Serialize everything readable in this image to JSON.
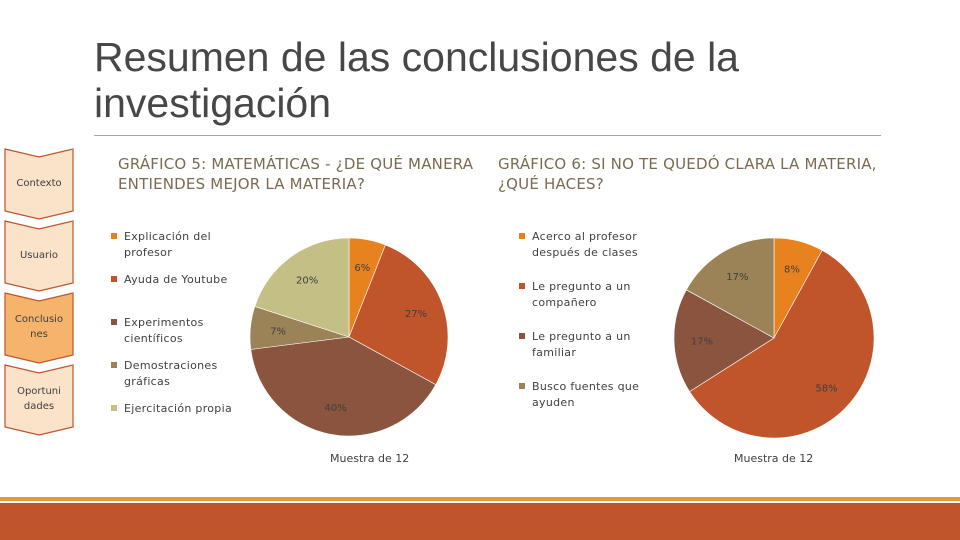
{
  "title": "Resumen de las conclusiones de la investigación",
  "nav": {
    "items": [
      {
        "label": "Contexto",
        "fill": "#fbe3c9"
      },
      {
        "label": "Usuario",
        "fill": "#fbe3c9"
      },
      {
        "label": "Conclusio nes",
        "fill": "#f6b36c"
      },
      {
        "label": "Oportuni dades",
        "fill": "#fbe3c9"
      }
    ],
    "border_color": "#c0542b"
  },
  "charts": {
    "left_heading": "GRÁFICO 5: MATEMÁTICAS - ¿DE QUÉ MANERA ENTIENDES MEJOR LA MATERIA?",
    "right_heading": "GRÁFICO 6: SI NO TE QUEDÓ CLARA LA MATERIA, ¿QUÉ HACES?",
    "left_sample": "Muestra de 12",
    "right_sample": "Muestra de 12"
  },
  "chart_data": [
    {
      "type": "pie",
      "title": "GRÁFICO 5: MATEMÁTICAS - ¿DE QUÉ MANERA ENTIENDES MEJOR LA MATERIA?",
      "categories": [
        "Explicación del profesor",
        "Ayuda de Youtube",
        "Experimentos científicos",
        "Demostraciones gráficas",
        "Ejercitación propia"
      ],
      "values": [
        6,
        27,
        40,
        7,
        20
      ],
      "labels": [
        "6%",
        "27%",
        "40%",
        "7%",
        "20%"
      ],
      "colors": [
        "#e8821e",
        "#c0542b",
        "#8a543f",
        "#9b8257",
        "#c3bf85"
      ],
      "legend": "left",
      "note": "Muestra de 12"
    },
    {
      "type": "pie",
      "title": "GRÁFICO 6: SI NO TE QUEDÓ CLARA LA MATERIA, ¿QUÉ HACES?",
      "categories": [
        "Acerco al profesor después de clases",
        "Le pregunto a un compañero",
        "Le pregunto a un familiar",
        "Busco fuentes que ayuden"
      ],
      "values": [
        8,
        58,
        17,
        17
      ],
      "labels": [
        "8%",
        "58%",
        "17%",
        "17%"
      ],
      "colors": [
        "#e8821e",
        "#c0542b",
        "#8a543f",
        "#9b8257"
      ],
      "legend": "left",
      "note": "Muestra de 12"
    }
  ]
}
